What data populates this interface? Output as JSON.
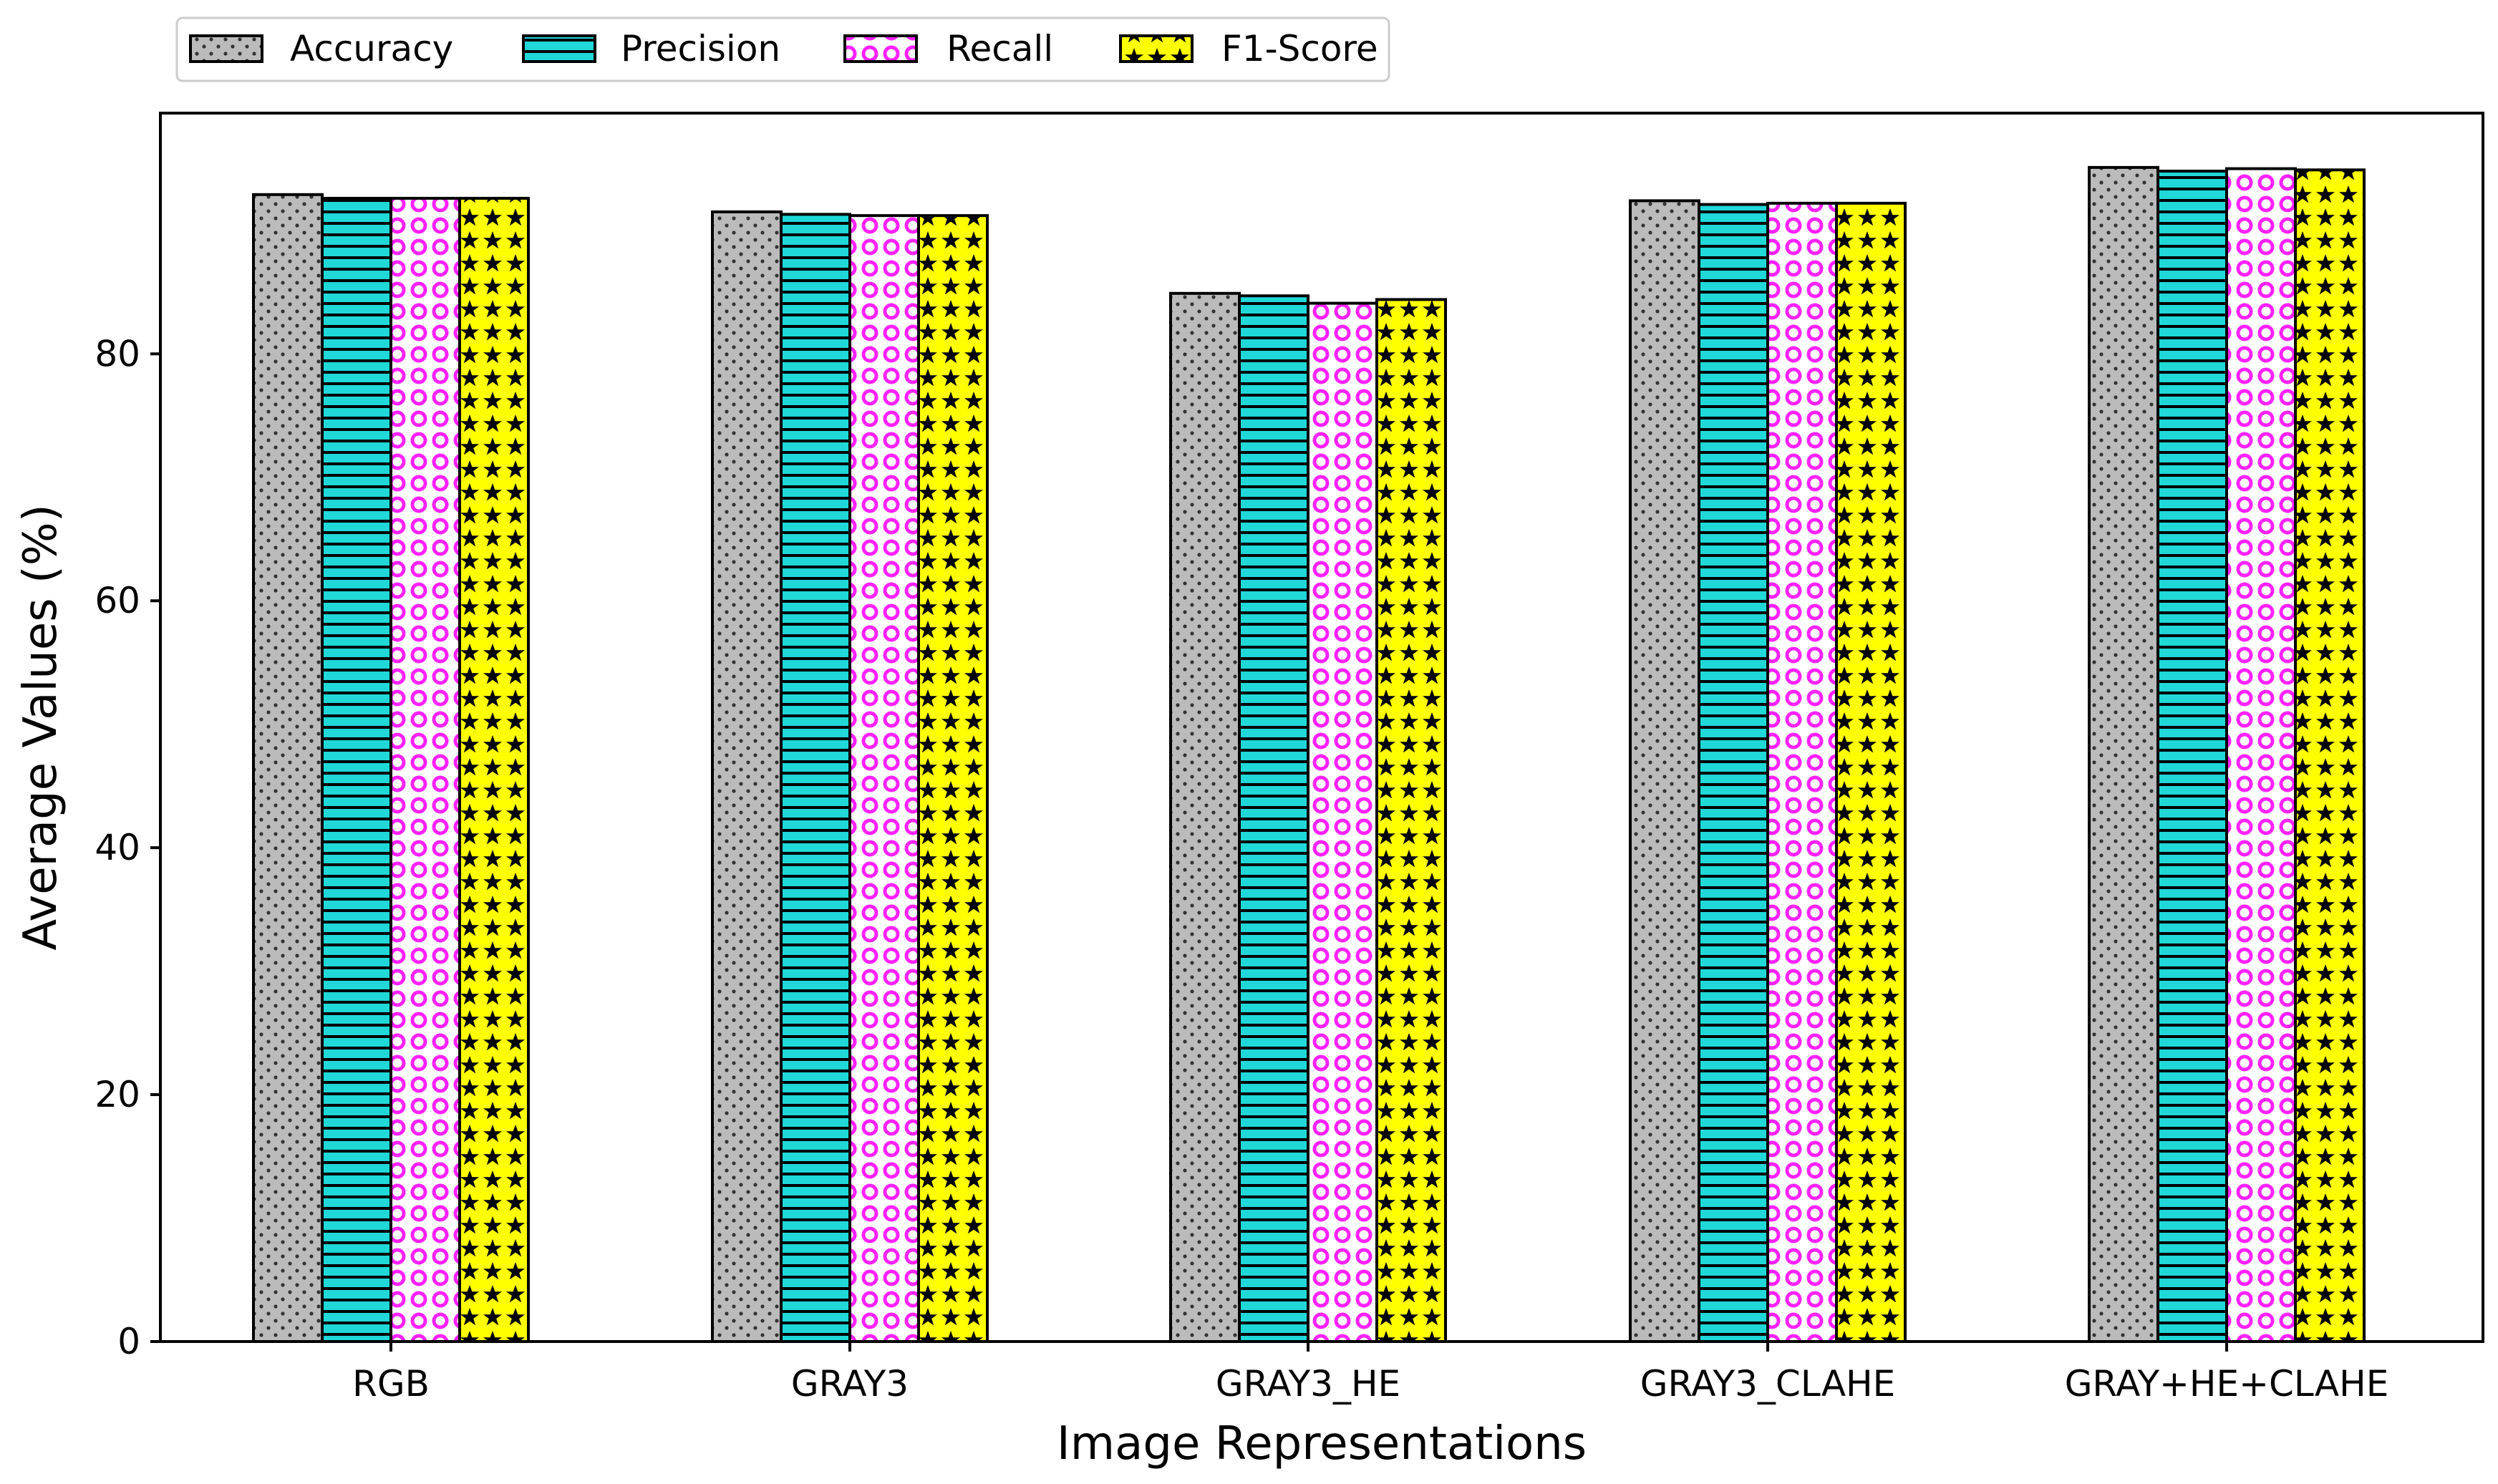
{
  "chart_data": {
    "type": "bar",
    "title": "",
    "xlabel": "Image Representations",
    "ylabel": "Average Values (%)",
    "categories": [
      "RGB",
      "GRAY3",
      "GRAY3_HE",
      "GRAY3_CLAHE",
      "GRAY+HE+CLAHE"
    ],
    "series": [
      {
        "name": "Accuracy",
        "values": [
          92.9,
          91.5,
          84.9,
          92.4,
          95.1
        ],
        "color": "#bbbbbb",
        "pattern": "dots"
      },
      {
        "name": "Precision",
        "values": [
          92.6,
          91.3,
          84.7,
          92.1,
          94.8
        ],
        "color": "#20d8d8",
        "pattern": "horizontal-lines"
      },
      {
        "name": "Recall",
        "values": [
          92.6,
          91.2,
          84.1,
          92.2,
          95.0
        ],
        "color": "#ff22ff",
        "pattern": "circles"
      },
      {
        "name": "F1-Score",
        "values": [
          92.6,
          91.2,
          84.4,
          92.2,
          94.9
        ],
        "color": "#ffff00",
        "pattern": "stars"
      }
    ],
    "ylim": [
      0,
      99.5
    ],
    "yticks": [
      0,
      20,
      40,
      60,
      80
    ],
    "grid": false,
    "legend_position": "top-left, above plot"
  }
}
